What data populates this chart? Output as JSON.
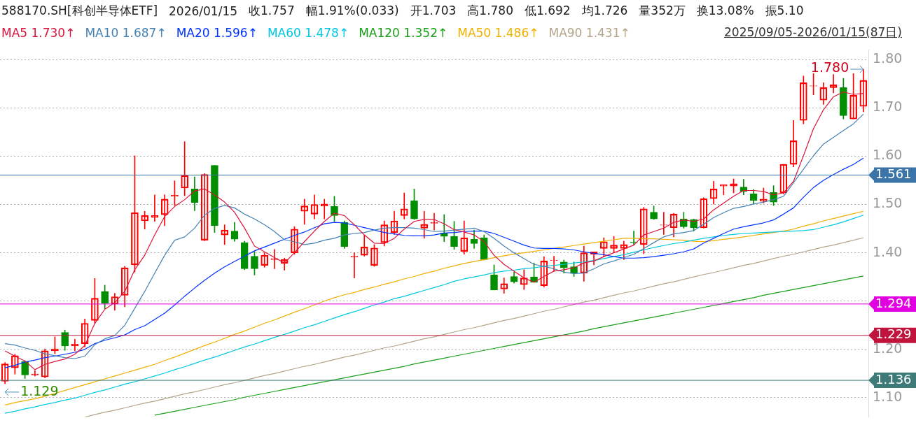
{
  "chart_data": {
    "type": "candlestick",
    "title": "588170.SH[科创半导体ETF]",
    "subtitle": "2025/09/05-2026/01/15(87日)",
    "categories": [
      null,
      null,
      null,
      null,
      null,
      null,
      null,
      null,
      null,
      null,
      null,
      null,
      null,
      null,
      null,
      null,
      null,
      null,
      null,
      null,
      null,
      null,
      null,
      null,
      null,
      null,
      null,
      null,
      null,
      null,
      null,
      null,
      null,
      null,
      null,
      null,
      null,
      null,
      null,
      null,
      null,
      null,
      null,
      null,
      null,
      null,
      null,
      null,
      null,
      null,
      null,
      null,
      null,
      null,
      null,
      null,
      null,
      null,
      null,
      null,
      null,
      null,
      null,
      null,
      null,
      null,
      null,
      null,
      null,
      null,
      null,
      null,
      null,
      null,
      null,
      null,
      null,
      null,
      null,
      null,
      null,
      null,
      null,
      null,
      null,
      null,
      null
    ],
    "ohlc": [
      [
        1.134,
        1.173,
        1.129,
        1.17
      ],
      [
        1.162,
        1.19,
        1.149,
        1.187
      ],
      [
        1.175,
        1.177,
        1.14,
        1.147
      ],
      [
        1.147,
        1.156,
        1.145,
        1.149
      ],
      [
        1.143,
        1.201,
        1.141,
        1.197
      ],
      [
        1.197,
        1.226,
        1.191,
        1.201
      ],
      [
        1.235,
        1.24,
        1.198,
        1.207
      ],
      [
        1.207,
        1.221,
        1.197,
        1.211
      ],
      [
        1.212,
        1.263,
        1.205,
        1.254
      ],
      [
        1.26,
        1.347,
        1.254,
        1.306
      ],
      [
        1.32,
        1.333,
        1.284,
        1.295
      ],
      [
        1.294,
        1.316,
        1.281,
        1.309
      ],
      [
        1.312,
        1.372,
        1.288,
        1.369
      ],
      [
        1.375,
        1.601,
        1.36,
        1.483
      ],
      [
        1.466,
        1.486,
        1.449,
        1.477
      ],
      [
        1.473,
        1.52,
        1.465,
        1.477
      ],
      [
        1.479,
        1.52,
        1.456,
        1.511
      ],
      [
        1.517,
        1.549,
        1.498,
        1.519
      ],
      [
        1.534,
        1.63,
        1.518,
        1.56
      ],
      [
        1.532,
        1.557,
        1.487,
        1.504
      ],
      [
        1.426,
        1.564,
        1.425,
        1.562
      ],
      [
        1.581,
        1.581,
        1.442,
        1.456
      ],
      [
        1.437,
        1.458,
        1.417,
        1.447
      ],
      [
        1.445,
        1.463,
        1.424,
        1.428
      ],
      [
        1.421,
        1.424,
        1.365,
        1.367
      ],
      [
        1.393,
        1.403,
        1.354,
        1.367
      ],
      [
        1.374,
        1.4,
        1.37,
        1.395
      ],
      [
        1.386,
        1.407,
        1.367,
        1.388
      ],
      [
        1.378,
        1.389,
        1.364,
        1.386
      ],
      [
        1.4,
        1.454,
        1.397,
        1.449
      ],
      [
        1.486,
        1.511,
        1.459,
        1.497
      ],
      [
        1.48,
        1.52,
        1.47,
        1.5
      ],
      [
        1.497,
        1.511,
        1.47,
        1.501
      ],
      [
        1.496,
        1.517,
        1.465,
        1.477
      ],
      [
        1.463,
        1.466,
        1.409,
        1.413
      ],
      [
        1.391,
        1.4,
        1.348,
        1.393
      ],
      [
        1.395,
        1.437,
        1.393,
        1.412
      ],
      [
        1.374,
        1.417,
        1.372,
        1.41
      ],
      [
        1.421,
        1.466,
        1.414,
        1.458
      ],
      [
        1.442,
        1.486,
        1.438,
        1.466
      ],
      [
        1.477,
        1.524,
        1.47,
        1.491
      ],
      [
        1.508,
        1.532,
        1.469,
        1.47
      ],
      [
        1.451,
        1.486,
        1.43,
        1.459
      ],
      [
        1.461,
        1.482,
        1.447,
        1.463
      ],
      [
        1.441,
        1.479,
        1.423,
        1.434
      ],
      [
        1.434,
        1.465,
        1.407,
        1.413
      ],
      [
        1.403,
        1.466,
        1.397,
        1.431
      ],
      [
        1.428,
        1.447,
        1.409,
        1.419
      ],
      [
        1.431,
        1.437,
        1.385,
        1.386
      ],
      [
        1.354,
        1.375,
        1.323,
        1.323
      ],
      [
        1.325,
        1.348,
        1.316,
        1.336
      ],
      [
        1.351,
        1.36,
        1.337,
        1.34
      ],
      [
        1.334,
        1.365,
        1.324,
        1.348
      ],
      [
        1.35,
        1.379,
        1.339,
        1.339
      ],
      [
        1.332,
        1.392,
        1.329,
        1.383
      ],
      [
        1.384,
        1.393,
        1.362,
        1.385
      ],
      [
        1.381,
        1.385,
        1.358,
        1.369
      ],
      [
        1.371,
        1.381,
        1.351,
        1.358
      ],
      [
        1.358,
        1.414,
        1.341,
        1.4
      ],
      [
        1.397,
        1.402,
        1.375,
        1.402
      ],
      [
        1.409,
        1.431,
        1.392,
        1.423
      ],
      [
        1.409,
        1.434,
        1.4,
        1.416
      ],
      [
        1.409,
        1.424,
        1.386,
        1.417
      ],
      [
        1.422,
        1.445,
        1.416,
        1.421
      ],
      [
        1.417,
        1.494,
        1.398,
        1.491
      ],
      [
        1.484,
        1.497,
        1.469,
        1.47
      ],
      [
        1.457,
        1.484,
        1.438,
        1.458
      ],
      [
        1.452,
        1.482,
        1.433,
        1.48
      ],
      [
        1.47,
        1.484,
        1.451,
        1.454
      ],
      [
        1.469,
        1.47,
        1.445,
        1.452
      ],
      [
        1.452,
        1.514,
        1.451,
        1.512
      ],
      [
        1.512,
        1.548,
        1.501,
        1.532
      ],
      [
        1.538,
        1.541,
        1.52,
        1.541
      ],
      [
        1.538,
        1.553,
        1.524,
        1.543
      ],
      [
        1.536,
        1.552,
        1.52,
        1.527
      ],
      [
        1.522,
        1.531,
        1.501,
        1.508
      ],
      [
        1.507,
        1.534,
        1.503,
        1.511
      ],
      [
        1.525,
        1.539,
        1.498,
        1.505
      ],
      [
        1.524,
        1.583,
        1.522,
        1.583
      ],
      [
        1.583,
        1.674,
        1.578,
        1.632
      ],
      [
        1.674,
        1.766,
        1.667,
        1.752
      ],
      [
        1.745,
        1.771,
        1.727,
        1.746
      ],
      [
        1.716,
        1.752,
        1.707,
        1.742
      ],
      [
        1.742,
        1.769,
        1.731,
        1.748
      ],
      [
        1.742,
        1.761,
        1.677,
        1.684
      ],
      [
        1.677,
        1.771,
        1.677,
        1.726
      ],
      [
        1.703,
        1.78,
        1.692,
        1.757
      ]
    ],
    "colors": [
      "#ff0000",
      "#ff0000",
      "#008f00",
      "#ff0000",
      "#ff0000",
      "#ff0000",
      "#008f00",
      "#ff0000",
      "#ff0000",
      "#ff0000",
      "#008f00",
      "#ff0000",
      "#ff0000",
      "#ff0000",
      "#ff0000",
      "#ff0000",
      "#ff0000",
      "#ff0000",
      "#ff0000",
      "#008f00",
      "#ff0000",
      "#008f00",
      "#ff0000",
      "#008f00",
      "#008f00",
      "#008f00",
      "#ff0000",
      "#ff0000",
      "#ff0000",
      "#ff0000",
      "#ff0000",
      "#ff0000",
      "#ff0000",
      "#008f00",
      "#008f00",
      "#ff0000",
      "#ff0000",
      "#ff0000",
      "#ff0000",
      "#ff0000",
      "#ff0000",
      "#008f00",
      "#ff0000",
      "#ff0000",
      "#008f00",
      "#008f00",
      "#ff0000",
      "#008f00",
      "#008f00",
      "#008f00",
      "#ff0000",
      "#008f00",
      "#ff0000",
      "#008f00",
      "#ff0000",
      "#ff0000",
      "#008f00",
      "#008f00",
      "#ff0000",
      "#ff0000",
      "#ff0000",
      "#ff0000",
      "#ff0000",
      "#008f00",
      "#ff0000",
      "#008f00",
      "#ff0000",
      "#ff0000",
      "#008f00",
      "#008f00",
      "#ff0000",
      "#ff0000",
      "#ff0000",
      "#ff0000",
      "#008f00",
      "#008f00",
      "#ff0000",
      "#008f00",
      "#ff0000",
      "#ff0000",
      "#ff0000",
      "#ff0000",
      "#ff0000",
      "#ff0000",
      "#008f00",
      "#ff0000",
      "#ff0000"
    ],
    "series": [
      {
        "name": "MA5 1.730↑",
        "type": "line",
        "color": "#dc143c",
        "values": [
          1.197,
          1.186,
          1.176,
          1.158,
          1.169,
          1.175,
          1.18,
          1.19,
          1.208,
          1.254,
          1.283,
          1.297,
          1.32,
          1.365,
          1.395,
          1.437,
          1.475,
          1.496,
          1.51,
          1.528,
          1.532,
          1.52,
          1.505,
          1.484,
          1.451,
          1.414,
          1.402,
          1.39,
          1.379,
          1.4,
          1.423,
          1.445,
          1.465,
          1.482,
          1.477,
          1.458,
          1.437,
          1.42,
          1.419,
          1.43,
          1.449,
          1.465,
          1.469,
          1.469,
          1.46,
          1.448,
          1.443,
          1.437,
          1.423,
          1.395,
          1.376,
          1.362,
          1.348,
          1.339,
          1.351,
          1.362,
          1.365,
          1.369,
          1.379,
          1.383,
          1.392,
          1.4,
          1.408,
          1.416,
          1.437,
          1.444,
          1.451,
          1.463,
          1.468,
          1.465,
          1.47,
          1.489,
          1.503,
          1.517,
          1.529,
          1.529,
          1.527,
          1.52,
          1.524,
          1.548,
          1.601,
          1.657,
          1.696,
          1.723,
          1.733,
          1.728,
          1.73
        ]
      },
      {
        "name": "MA10 1.687↑",
        "type": "line",
        "color": "#4682b4",
        "values": [
          1.212,
          1.209,
          1.203,
          1.198,
          1.191,
          1.187,
          1.183,
          1.181,
          1.186,
          1.21,
          1.222,
          1.229,
          1.25,
          1.285,
          1.32,
          1.358,
          1.395,
          1.426,
          1.433,
          1.451,
          1.478,
          1.492,
          1.498,
          1.493,
          1.48,
          1.47,
          1.458,
          1.444,
          1.427,
          1.423,
          1.417,
          1.42,
          1.426,
          1.43,
          1.437,
          1.44,
          1.442,
          1.447,
          1.451,
          1.452,
          1.452,
          1.451,
          1.448,
          1.444,
          1.445,
          1.447,
          1.449,
          1.451,
          1.444,
          1.43,
          1.414,
          1.4,
          1.388,
          1.376,
          1.372,
          1.367,
          1.36,
          1.357,
          1.358,
          1.367,
          1.377,
          1.383,
          1.39,
          1.397,
          1.409,
          1.421,
          1.433,
          1.439,
          1.442,
          1.446,
          1.459,
          1.473,
          1.483,
          1.492,
          1.496,
          1.501,
          1.505,
          1.51,
          1.517,
          1.545,
          1.573,
          1.601,
          1.625,
          1.639,
          1.653,
          1.667,
          1.687
        ]
      },
      {
        "name": "MA20 1.596↑",
        "type": "line",
        "color": "#0033ff",
        "values": [
          1.162,
          1.167,
          1.174,
          1.178,
          1.183,
          1.186,
          1.19,
          1.194,
          1.2,
          1.212,
          1.219,
          1.224,
          1.23,
          1.241,
          1.249,
          1.262,
          1.275,
          1.292,
          1.31,
          1.327,
          1.343,
          1.358,
          1.371,
          1.382,
          1.393,
          1.404,
          1.412,
          1.42,
          1.428,
          1.436,
          1.443,
          1.452,
          1.46,
          1.463,
          1.462,
          1.457,
          1.452,
          1.447,
          1.442,
          1.439,
          1.436,
          1.435,
          1.435,
          1.437,
          1.441,
          1.442,
          1.444,
          1.445,
          1.445,
          1.44,
          1.432,
          1.424,
          1.416,
          1.41,
          1.409,
          1.409,
          1.408,
          1.406,
          1.402,
          1.399,
          1.396,
          1.392,
          1.389,
          1.389,
          1.39,
          1.392,
          1.395,
          1.398,
          1.402,
          1.408,
          1.42,
          1.43,
          1.44,
          1.449,
          1.454,
          1.458,
          1.462,
          1.468,
          1.48,
          1.493,
          1.515,
          1.535,
          1.55,
          1.562,
          1.573,
          1.583,
          1.596
        ]
      },
      {
        "name": "MA60 1.478↑",
        "type": "line",
        "color": "#00c8e0",
        "values": [
          1.068,
          1.072,
          1.077,
          1.081,
          1.086,
          1.09,
          1.095,
          1.099,
          1.105,
          1.111,
          1.116,
          1.122,
          1.128,
          1.133,
          1.139,
          1.145,
          1.151,
          1.158,
          1.164,
          1.171,
          1.178,
          1.184,
          1.191,
          1.198,
          1.205,
          1.211,
          1.218,
          1.225,
          1.231,
          1.238,
          1.245,
          1.251,
          1.258,
          1.265,
          1.272,
          1.278,
          1.285,
          1.292,
          1.298,
          1.305,
          1.31,
          1.316,
          1.322,
          1.328,
          1.334,
          1.341,
          1.346,
          1.35,
          1.354,
          1.359,
          1.362,
          1.364,
          1.367,
          1.369,
          1.372,
          1.374,
          1.376,
          1.379,
          1.381,
          1.384,
          1.388,
          1.392,
          1.396,
          1.401,
          1.406,
          1.411,
          1.415,
          1.419,
          1.422,
          1.426,
          1.43,
          1.433,
          1.436,
          1.438,
          1.44,
          1.441,
          1.442,
          1.443,
          1.444,
          1.445,
          1.446,
          1.448,
          1.453,
          1.458,
          1.464,
          1.471,
          1.478
        ]
      },
      {
        "name": "MA120 1.352↑",
        "type": "line",
        "color": "#1aa01a",
        "values": [
          null,
          null,
          null,
          null,
          null,
          null,
          null,
          null,
          null,
          null,
          null,
          null,
          null,
          null,
          null,
          1.064,
          1.068,
          1.072,
          1.076,
          1.08,
          1.084,
          1.088,
          1.092,
          1.096,
          1.101,
          1.105,
          1.109,
          1.113,
          1.117,
          1.121,
          1.125,
          1.129,
          1.133,
          1.137,
          1.141,
          1.145,
          1.149,
          1.153,
          1.157,
          1.161,
          1.165,
          1.17,
          1.174,
          1.178,
          1.182,
          1.186,
          1.19,
          1.194,
          1.198,
          1.202,
          1.206,
          1.21,
          1.214,
          1.218,
          1.222,
          1.226,
          1.23,
          1.234,
          1.238,
          1.243,
          1.247,
          1.251,
          1.255,
          1.259,
          1.263,
          1.267,
          1.271,
          1.275,
          1.279,
          1.283,
          1.287,
          1.291,
          1.295,
          1.299,
          1.303,
          1.307,
          1.312,
          1.316,
          1.32,
          1.324,
          1.328,
          1.332,
          1.336,
          1.34,
          1.344,
          1.348,
          1.352
        ]
      },
      {
        "name": "MA50 1.486↑",
        "type": "line",
        "color": "#f0b000",
        "values": [
          1.085,
          1.09,
          1.094,
          1.098,
          1.103,
          1.109,
          1.115,
          1.121,
          1.127,
          1.133,
          1.139,
          1.145,
          1.151,
          1.157,
          1.163,
          1.169,
          1.177,
          1.184,
          1.192,
          1.2,
          1.208,
          1.215,
          1.223,
          1.231,
          1.238,
          1.246,
          1.254,
          1.261,
          1.269,
          1.277,
          1.284,
          1.292,
          1.3,
          1.307,
          1.313,
          1.318,
          1.324,
          1.329,
          1.335,
          1.34,
          1.346,
          1.351,
          1.357,
          1.362,
          1.368,
          1.373,
          1.378,
          1.382,
          1.386,
          1.39,
          1.394,
          1.397,
          1.4,
          1.403,
          1.406,
          1.409,
          1.412,
          1.415,
          1.418,
          1.421,
          1.424,
          1.427,
          1.43,
          1.43,
          1.429,
          1.429,
          1.428,
          1.427,
          1.426,
          1.424,
          1.423,
          1.425,
          1.428,
          1.43,
          1.433,
          1.436,
          1.439,
          1.442,
          1.445,
          1.449,
          1.455,
          1.46,
          1.466,
          1.471,
          1.476,
          1.481,
          1.486
        ]
      },
      {
        "name": "MA90 1.431↑",
        "type": "line",
        "color": "#b4a48a",
        "values": [
          null,
          null,
          null,
          null,
          null,
          null,
          null,
          null,
          1.06,
          1.065,
          1.07,
          1.074,
          1.079,
          1.084,
          1.089,
          1.093,
          1.098,
          1.103,
          1.108,
          1.112,
          1.117,
          1.122,
          1.127,
          1.131,
          1.136,
          1.141,
          1.146,
          1.15,
          1.155,
          1.16,
          1.165,
          1.169,
          1.174,
          1.179,
          1.184,
          1.188,
          1.193,
          1.198,
          1.203,
          1.207,
          1.212,
          1.217,
          1.222,
          1.226,
          1.231,
          1.236,
          1.241,
          1.245,
          1.25,
          1.255,
          1.26,
          1.264,
          1.269,
          1.274,
          1.279,
          1.283,
          1.288,
          1.293,
          1.298,
          1.302,
          1.307,
          1.312,
          1.317,
          1.321,
          1.326,
          1.331,
          1.336,
          1.34,
          1.345,
          1.35,
          1.355,
          1.359,
          1.364,
          1.369,
          1.374,
          1.378,
          1.383,
          1.388,
          1.393,
          1.397,
          1.402,
          1.407,
          1.412,
          1.416,
          1.421,
          1.426,
          1.431
        ]
      }
    ],
    "annotations": [
      "2026/01/15",
      "收1.757",
      "幅1.91%(0.033)",
      "开1.703",
      "高1.780",
      "低1.692",
      "均1.726",
      "量352万",
      "换13.08%",
      "振5.10",
      "1.780",
      "1.129"
    ],
    "ref_lines": [
      {
        "axis": "y",
        "value": 1.561,
        "label": "1.561",
        "color": "#3a74a8"
      },
      {
        "axis": "y",
        "value": 1.294,
        "label": "1.294",
        "color": "#e000e0"
      },
      {
        "axis": "y",
        "value": 1.229,
        "label": "1.229",
        "color": "#c0143c"
      },
      {
        "axis": "y",
        "value": 1.136,
        "label": "1.136",
        "color": "#3d7a78"
      }
    ],
    "ylim": [
      1.06,
      1.82
    ],
    "yticks": [
      {
        "value": 1.1,
        "label": "1.10"
      },
      {
        "value": 1.2,
        "label": "1.20"
      },
      {
        "value": 1.3,
        "label": null
      },
      {
        "value": 1.4,
        "label": "1.40"
      },
      {
        "value": 1.5,
        "label": "1.50"
      },
      {
        "value": 1.6,
        "label": "1.60"
      },
      {
        "value": 1.7,
        "label": "1.70"
      },
      {
        "value": 1.8,
        "label": "1.80"
      }
    ],
    "grid": "y",
    "legend": "top left",
    "tick_labels": "y",
    "marker": "none",
    "line_style": "solid"
  }
}
